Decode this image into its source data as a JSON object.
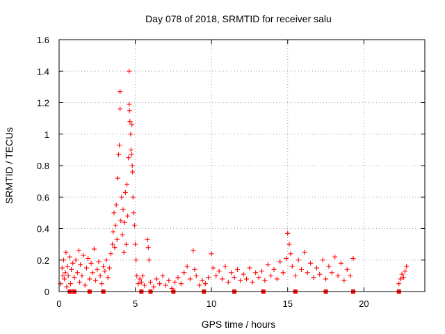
{
  "chart_data": {
    "type": "scatter",
    "title": "Day 078 of 2018, SRMTID for receiver salu",
    "xlabel": "GPS time / hours",
    "ylabel": "SRMTID / TECUs",
    "xlim": [
      0,
      24
    ],
    "ylim": [
      0,
      1.6
    ],
    "x_ticks": [
      0,
      5,
      10,
      15,
      20
    ],
    "x_tick_labels": [
      "0",
      "5",
      "10",
      "15",
      "20"
    ],
    "y_ticks": [
      0,
      0.2,
      0.4,
      0.6,
      0.8,
      1.0,
      1.2,
      1.4,
      1.6
    ],
    "y_tick_labels": [
      "0",
      "0.2",
      "0.4",
      "0.6",
      "0.8",
      "1",
      "1.2",
      "1.4",
      "1.6"
    ],
    "grid": true,
    "marker": "+",
    "color": "#ff0000",
    "series": [
      {
        "name": "SRMTID",
        "points": [
          [
            0.1,
            0.05
          ],
          [
            0.2,
            0.15
          ],
          [
            0.25,
            0.1
          ],
          [
            0.3,
            0.2
          ],
          [
            0.35,
            0.08
          ],
          [
            0.4,
            0.12
          ],
          [
            0.45,
            0.25
          ],
          [
            0.5,
            0.03
          ],
          [
            0.55,
            0.16
          ],
          [
            0.6,
            0.1
          ],
          [
            0.7,
            0.22
          ],
          [
            0.75,
            0.05
          ],
          [
            0.8,
            0.14
          ],
          [
            0.9,
            0.18
          ],
          [
            1.0,
            0.09
          ],
          [
            1.1,
            0.2
          ],
          [
            1.2,
            0.12
          ],
          [
            1.3,
            0.26
          ],
          [
            1.35,
            0.06
          ],
          [
            1.4,
            0.17
          ],
          [
            1.5,
            0.1
          ],
          [
            1.6,
            0.23
          ],
          [
            1.7,
            0.04
          ],
          [
            1.8,
            0.15
          ],
          [
            1.9,
            0.21
          ],
          [
            2.0,
            0.08
          ],
          [
            2.1,
            0.18
          ],
          [
            2.2,
            0.12
          ],
          [
            2.3,
            0.27
          ],
          [
            2.4,
            0.07
          ],
          [
            2.5,
            0.14
          ],
          [
            2.6,
            0.19
          ],
          [
            2.7,
            0.1
          ],
          [
            2.8,
            0.05
          ],
          [
            2.9,
            0.16
          ],
          [
            3.0,
            0.13
          ],
          [
            3.1,
            0.2
          ],
          [
            3.2,
            0.09
          ],
          [
            3.3,
            0.15
          ],
          [
            3.4,
            0.24
          ],
          [
            3.5,
            0.3
          ],
          [
            3.55,
            0.38
          ],
          [
            3.6,
            0.5
          ],
          [
            3.65,
            0.28
          ],
          [
            3.7,
            0.42
          ],
          [
            3.75,
            0.55
          ],
          [
            3.8,
            0.33
          ],
          [
            3.85,
            0.72
          ],
          [
            3.9,
            0.87
          ],
          [
            3.95,
            0.93
          ],
          [
            4.0,
            1.27
          ],
          [
            4.0,
            1.16
          ],
          [
            4.05,
            0.45
          ],
          [
            4.1,
            0.6
          ],
          [
            4.15,
            0.36
          ],
          [
            4.2,
            0.52
          ],
          [
            4.25,
            0.25
          ],
          [
            4.3,
            0.44
          ],
          [
            4.35,
            0.63
          ],
          [
            4.4,
            0.3
          ],
          [
            4.45,
            0.68
          ],
          [
            4.5,
            0.48
          ],
          [
            4.55,
            0.85
          ],
          [
            4.6,
            1.4
          ],
          [
            4.6,
            1.19
          ],
          [
            4.62,
            1.15
          ],
          [
            4.65,
            1.08
          ],
          [
            4.7,
            1.0
          ],
          [
            4.72,
            0.9
          ],
          [
            4.75,
            0.87
          ],
          [
            4.78,
            1.06
          ],
          [
            4.8,
            0.8
          ],
          [
            4.82,
            0.76
          ],
          [
            4.85,
            0.6
          ],
          [
            4.9,
            0.5
          ],
          [
            4.95,
            0.42
          ],
          [
            5.0,
            0.3
          ],
          [
            5.05,
            0.2
          ],
          [
            5.1,
            0.1
          ],
          [
            5.2,
            0.05
          ],
          [
            5.3,
            0.08
          ],
          [
            5.4,
            0.06
          ],
          [
            5.5,
            0.1
          ],
          [
            5.6,
            0.04
          ],
          [
            5.8,
            0.33
          ],
          [
            5.85,
            0.28
          ],
          [
            5.9,
            0.2
          ],
          [
            6.0,
            0.06
          ],
          [
            6.2,
            0.03
          ],
          [
            6.4,
            0.08
          ],
          [
            6.6,
            0.05
          ],
          [
            6.8,
            0.1
          ],
          [
            7.0,
            0.04
          ],
          [
            7.2,
            0.07
          ],
          [
            7.4,
            0.02
          ],
          [
            7.6,
            0.06
          ],
          [
            7.8,
            0.09
          ],
          [
            8.0,
            0.05
          ],
          [
            8.2,
            0.12
          ],
          [
            8.4,
            0.16
          ],
          [
            8.6,
            0.08
          ],
          [
            8.8,
            0.26
          ],
          [
            8.9,
            0.14
          ],
          [
            9.0,
            0.1
          ],
          [
            9.2,
            0.04
          ],
          [
            9.4,
            0.07
          ],
          [
            9.6,
            0.05
          ],
          [
            9.8,
            0.09
          ],
          [
            10.0,
            0.24
          ],
          [
            10.1,
            0.15
          ],
          [
            10.3,
            0.1
          ],
          [
            10.5,
            0.13
          ],
          [
            10.7,
            0.08
          ],
          [
            10.9,
            0.16
          ],
          [
            11.1,
            0.06
          ],
          [
            11.3,
            0.12
          ],
          [
            11.5,
            0.09
          ],
          [
            11.7,
            0.14
          ],
          [
            11.9,
            0.07
          ],
          [
            12.1,
            0.11
          ],
          [
            12.3,
            0.08
          ],
          [
            12.5,
            0.15
          ],
          [
            12.7,
            0.06
          ],
          [
            12.9,
            0.12
          ],
          [
            13.1,
            0.09
          ],
          [
            13.3,
            0.13
          ],
          [
            13.5,
            0.07
          ],
          [
            13.7,
            0.17
          ],
          [
            13.9,
            0.1
          ],
          [
            14.1,
            0.14
          ],
          [
            14.3,
            0.08
          ],
          [
            14.5,
            0.19
          ],
          [
            14.7,
            0.12
          ],
          [
            14.9,
            0.21
          ],
          [
            15.0,
            0.37
          ],
          [
            15.1,
            0.3
          ],
          [
            15.2,
            0.24
          ],
          [
            15.3,
            0.16
          ],
          [
            15.5,
            0.1
          ],
          [
            15.7,
            0.2
          ],
          [
            15.9,
            0.14
          ],
          [
            16.1,
            0.25
          ],
          [
            16.3,
            0.12
          ],
          [
            16.5,
            0.18
          ],
          [
            16.7,
            0.09
          ],
          [
            16.9,
            0.15
          ],
          [
            17.1,
            0.11
          ],
          [
            17.3,
            0.2
          ],
          [
            17.5,
            0.08
          ],
          [
            17.7,
            0.16
          ],
          [
            17.9,
            0.12
          ],
          [
            18.1,
            0.22
          ],
          [
            18.3,
            0.1
          ],
          [
            18.5,
            0.18
          ],
          [
            18.7,
            0.07
          ],
          [
            18.9,
            0.14
          ],
          [
            19.1,
            0.1
          ],
          [
            19.3,
            0.21
          ],
          [
            22.3,
            0.05
          ],
          [
            22.4,
            0.08
          ],
          [
            22.5,
            0.11
          ],
          [
            22.6,
            0.09
          ],
          [
            22.7,
            0.13
          ],
          [
            22.8,
            0.16
          ]
        ],
        "zero_markers": [
          0.7,
          1.0,
          2.0,
          2.9,
          5.4,
          6.0,
          7.5,
          9.5,
          11.5,
          13.4,
          15.5,
          17.5,
          19.3,
          22.3
        ]
      }
    ]
  }
}
